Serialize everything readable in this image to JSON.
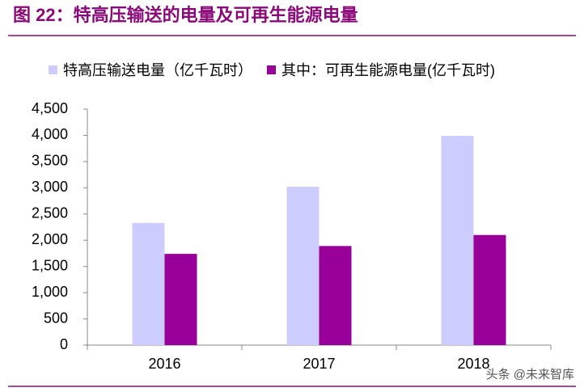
{
  "chart_data": {
    "type": "bar",
    "title": "图 22：特高压输送的电量及可再生能源电量",
    "categories": [
      "2016",
      "2017",
      "2018"
    ],
    "series": [
      {
        "name": "特高压输送电量（亿千瓦时）",
        "color": "#ccccff",
        "values": [
          2330,
          3020,
          3990
        ]
      },
      {
        "name": "其中：可再生能源电量(亿千瓦时)",
        "color": "#990099",
        "values": [
          1740,
          1890,
          2100
        ]
      }
    ],
    "ylim": [
      0,
      4500
    ],
    "yticks": [
      0,
      500,
      {
        "value": 1000,
        "label": "1,000"
      },
      {
        "value": 1500,
        "label": "1,500"
      },
      {
        "value": 2000,
        "label": "2,000"
      },
      {
        "value": 2500,
        "label": "2,500"
      },
      {
        "value": 3000,
        "label": "3,000"
      },
      {
        "value": 3500,
        "label": "3,500"
      },
      {
        "value": 4000,
        "label": "4,000"
      },
      {
        "value": 4500,
        "label": "4,500"
      }
    ],
    "grid": false,
    "legend": "top",
    "watermark": "头条 @未来智库"
  }
}
